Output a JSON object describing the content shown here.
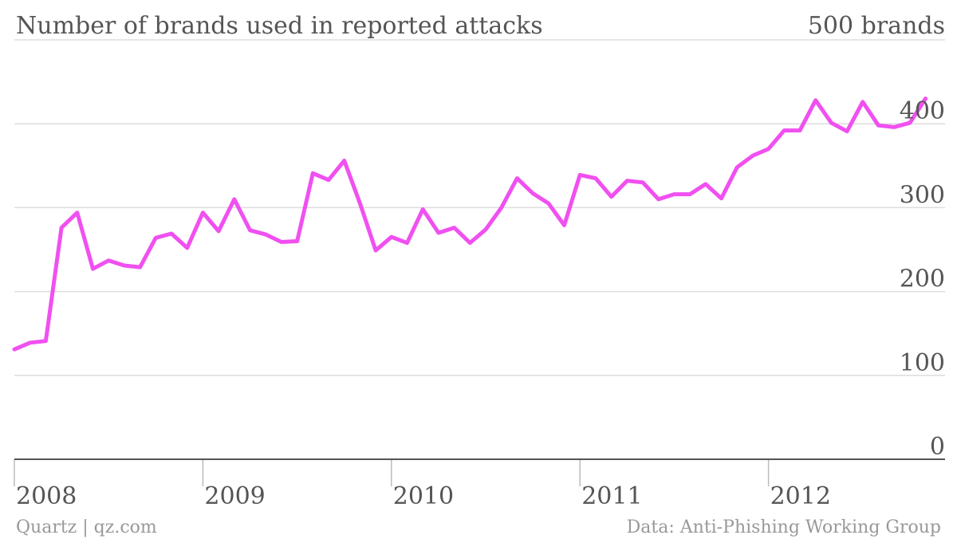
{
  "chart_data": {
    "type": "line",
    "title": "Number of brands used in reported attacks",
    "unit_label": "500 brands",
    "ylim": [
      0,
      500
    ],
    "yticks": [
      {
        "value": 100,
        "label": "100"
      },
      {
        "value": 200,
        "label": "200"
      },
      {
        "value": 300,
        "label": "300"
      },
      {
        "value": 400,
        "label": "400"
      },
      {
        "value": 0,
        "label": "0"
      }
    ],
    "xticks": [
      "2008",
      "2009",
      "2010",
      "2011",
      "2012"
    ],
    "x_start": "2008-01",
    "grid": true,
    "series": [
      {
        "color": "#f050f0",
        "x": [
          "2008-01",
          "2008-02",
          "2008-03",
          "2008-04",
          "2008-05",
          "2008-06",
          "2008-07",
          "2008-08",
          "2008-09",
          "2008-10",
          "2008-11",
          "2008-12",
          "2009-01",
          "2009-02",
          "2009-03",
          "2009-04",
          "2009-05",
          "2009-06",
          "2009-07",
          "2009-08",
          "2009-09",
          "2009-10",
          "2009-11",
          "2009-12",
          "2010-01",
          "2010-02",
          "2010-03",
          "2010-04",
          "2010-05",
          "2010-06",
          "2010-07",
          "2010-08",
          "2010-09",
          "2010-10",
          "2010-11",
          "2010-12",
          "2011-01",
          "2011-02",
          "2011-03",
          "2011-04",
          "2011-05",
          "2011-06",
          "2011-07",
          "2011-08",
          "2011-09",
          "2011-10",
          "2011-11",
          "2011-12",
          "2012-01",
          "2012-02",
          "2012-03",
          "2012-04",
          "2012-05",
          "2012-06",
          "2012-07",
          "2012-08",
          "2012-09",
          "2012-10",
          "2012-11"
        ],
        "values": [
          131,
          139,
          141,
          276,
          294,
          227,
          237,
          231,
          229,
          264,
          269,
          252,
          294,
          272,
          310,
          273,
          268,
          259,
          260,
          341,
          333,
          356,
          305,
          249,
          265,
          258,
          298,
          270,
          276,
          258,
          274,
          300,
          335,
          317,
          305,
          279,
          339,
          335,
          313,
          332,
          330,
          310,
          316,
          316,
          328,
          311,
          348,
          362,
          370,
          392,
          392,
          428,
          401,
          391,
          426,
          398,
          396,
          401,
          430
        ]
      }
    ]
  },
  "footer": {
    "source_left": "Quartz | qz.com",
    "source_right": "Data: Anti-Phishing Working Group"
  },
  "colors": {
    "line": "#f050f0",
    "text": "#555555",
    "footer_text": "#999999"
  }
}
